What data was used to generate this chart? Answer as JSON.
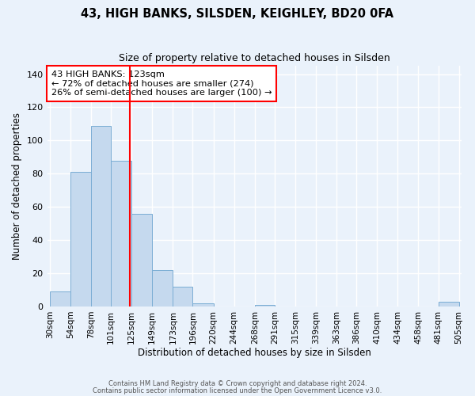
{
  "title": "43, HIGH BANKS, SILSDEN, KEIGHLEY, BD20 0FA",
  "subtitle": "Size of property relative to detached houses in Silsden",
  "xlabel": "Distribution of detached houses by size in Silsden",
  "ylabel": "Number of detached properties",
  "bar_left_edges": [
    30,
    54,
    78,
    101,
    125,
    149,
    173,
    196,
    220,
    244,
    268,
    291,
    315,
    339,
    363,
    386,
    410,
    434,
    458,
    481
  ],
  "bar_widths": [
    24,
    24,
    23,
    24,
    24,
    24,
    23,
    24,
    24,
    24,
    23,
    24,
    24,
    24,
    23,
    24,
    24,
    24,
    23,
    24
  ],
  "bar_heights": [
    9,
    81,
    109,
    88,
    56,
    22,
    12,
    2,
    0,
    0,
    1,
    0,
    0,
    0,
    0,
    0,
    0,
    0,
    0,
    3
  ],
  "bar_color": "#c5d9ee",
  "bar_edgecolor": "#7aadd4",
  "vline_x": 123,
  "vline_color": "red",
  "ylim": [
    0,
    145
  ],
  "yticks": [
    0,
    20,
    40,
    60,
    80,
    100,
    120,
    140
  ],
  "xtick_labels": [
    "30sqm",
    "54sqm",
    "78sqm",
    "101sqm",
    "125sqm",
    "149sqm",
    "173sqm",
    "196sqm",
    "220sqm",
    "244sqm",
    "268sqm",
    "291sqm",
    "315sqm",
    "339sqm",
    "363sqm",
    "386sqm",
    "410sqm",
    "434sqm",
    "458sqm",
    "481sqm",
    "505sqm"
  ],
  "annotation_lines": [
    "43 HIGH BANKS: 123sqm",
    "← 72% of detached houses are smaller (274)",
    "26% of semi-detached houses are larger (100) →"
  ],
  "bg_color": "#eaf2fb",
  "grid_color": "#ffffff",
  "footer_line1": "Contains HM Land Registry data © Crown copyright and database right 2024.",
  "footer_line2": "Contains public sector information licensed under the Open Government Licence v3.0."
}
